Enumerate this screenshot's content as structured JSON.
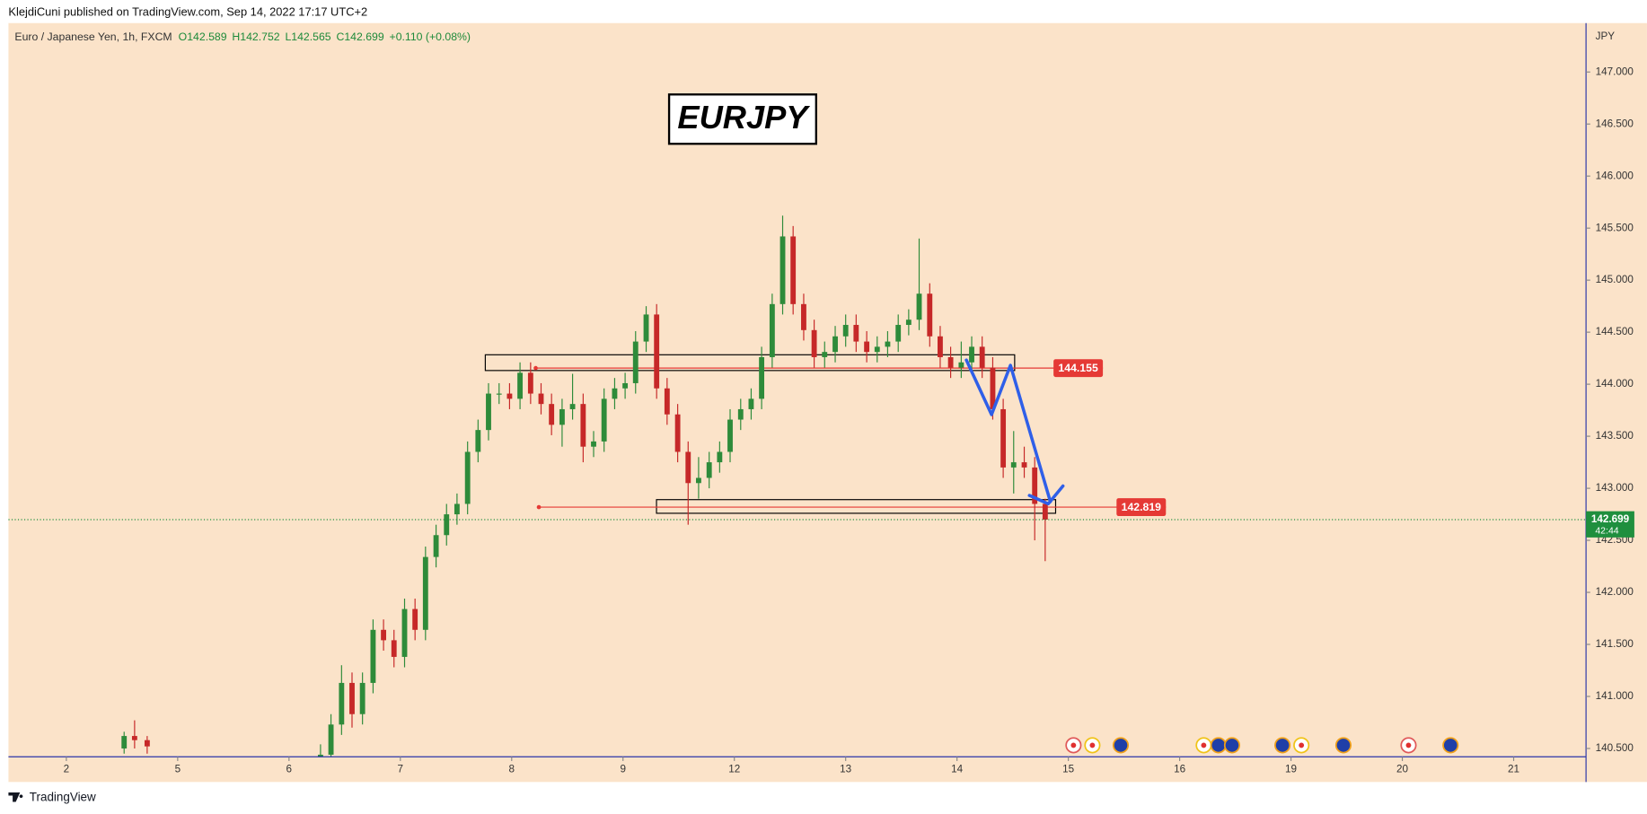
{
  "header": {
    "publisher": "KlejdiCuni published on TradingView.com, Sep 14, 2022 17:17 UTC+2",
    "symbol": "Euro / Japanese Yen, 1h, FXCM",
    "ohlc": [
      "O142.589",
      "H142.752",
      "L142.565",
      "C142.699",
      "+0.110 (+0.08%)"
    ]
  },
  "footer": {
    "brand": "TradingView"
  },
  "chart_data": {
    "type": "candlestick",
    "title": "EURJPY",
    "y_axis_label": "JPY",
    "up_color": "#2e8b3a",
    "down_color": "#c62828",
    "xlim": [
      -0.52,
      13.65
    ],
    "ylim": [
      140.42,
      147.47
    ],
    "xticks": [
      {
        "value": 0,
        "label": "2"
      },
      {
        "value": 1,
        "label": "5"
      },
      {
        "value": 2,
        "label": "6"
      },
      {
        "value": 3,
        "label": "7"
      },
      {
        "value": 4,
        "label": "8"
      },
      {
        "value": 5,
        "label": "9"
      },
      {
        "value": 6,
        "label": "12"
      },
      {
        "value": 7,
        "label": "13"
      },
      {
        "value": 8,
        "label": "14"
      },
      {
        "value": 9,
        "label": "15"
      },
      {
        "value": 10,
        "label": "16"
      },
      {
        "value": 11,
        "label": "19"
      },
      {
        "value": 12,
        "label": "20"
      },
      {
        "value": 13,
        "label": "21"
      }
    ],
    "yticks": [
      {
        "value": 140.5,
        "label": "140.500"
      },
      {
        "value": 141,
        "label": "141.000"
      },
      {
        "value": 141.5,
        "label": "141.500"
      },
      {
        "value": 142,
        "label": "142.000"
      },
      {
        "value": 142.5,
        "label": "142.500"
      },
      {
        "value": 143,
        "label": "143.000"
      },
      {
        "value": 143.5,
        "label": "143.500"
      },
      {
        "value": 144,
        "label": "144.000"
      },
      {
        "value": 144.5,
        "label": "144.500"
      },
      {
        "value": 145,
        "label": "145.000"
      },
      {
        "value": 145.5,
        "label": "145.500"
      },
      {
        "value": 146,
        "label": "146.000"
      },
      {
        "value": 146.5,
        "label": "146.500"
      },
      {
        "value": 147,
        "label": "147.000"
      }
    ],
    "x": [
      0.519,
      0.613,
      0.726,
      2.283,
      2.377,
      2.472,
      2.566,
      2.66,
      2.755,
      2.849,
      2.943,
      3.038,
      3.132,
      3.226,
      3.321,
      3.415,
      3.509,
      3.604,
      3.698,
      3.792,
      3.887,
      3.981,
      4.075,
      4.17,
      4.264,
      4.358,
      4.453,
      4.547,
      4.642,
      4.736,
      4.83,
      4.925,
      5.019,
      5.113,
      5.208,
      5.302,
      5.396,
      5.491,
      5.585,
      5.679,
      5.774,
      5.868,
      5.962,
      6.057,
      6.151,
      6.245,
      6.34,
      6.434,
      6.528,
      6.623,
      6.717,
      6.811,
      6.906,
      7.0,
      7.094,
      7.189,
      7.283,
      7.377,
      7.472,
      7.566,
      7.66,
      7.755,
      7.849,
      7.943,
      8.038,
      8.132,
      8.226,
      8.321,
      8.415,
      8.509,
      8.604,
      8.698,
      8.792
    ],
    "open": [
      140.5,
      140.62,
      140.58,
      140.4,
      140.44,
      140.73,
      141.13,
      140.83,
      141.13,
      141.64,
      141.54,
      141.38,
      141.84,
      141.64,
      142.34,
      142.55,
      142.75,
      142.85,
      143.35,
      143.56,
      143.91,
      143.91,
      143.86,
      144.11,
      143.91,
      143.81,
      143.61,
      143.76,
      143.81,
      143.4,
      143.45,
      143.86,
      143.96,
      144.01,
      144.41,
      144.67,
      143.96,
      143.71,
      143.35,
      143.05,
      143.1,
      143.25,
      143.35,
      143.66,
      143.76,
      143.86,
      144.26,
      144.77,
      145.42,
      144.77,
      144.52,
      144.26,
      144.31,
      144.46,
      144.57,
      144.41,
      144.31,
      144.36,
      144.41,
      144.57,
      144.62,
      144.87,
      144.46,
      144.26,
      144.16,
      144.21,
      144.36,
      144.16,
      143.76,
      143.2,
      143.25,
      143.2,
      142.85
    ],
    "high": [
      140.66,
      140.77,
      140.62,
      140.54,
      140.83,
      141.3,
      141.23,
      141.23,
      141.74,
      141.74,
      141.64,
      141.94,
      141.94,
      142.44,
      142.65,
      142.85,
      142.95,
      143.45,
      143.66,
      144.01,
      144.01,
      144.01,
      144.21,
      144.21,
      144.01,
      143.91,
      143.86,
      144.1,
      143.91,
      143.55,
      143.96,
      144.06,
      144.11,
      144.51,
      144.75,
      144.77,
      144.06,
      143.81,
      143.45,
      143.3,
      143.35,
      143.45,
      143.76,
      143.86,
      143.96,
      144.36,
      144.87,
      145.62,
      145.52,
      144.87,
      144.62,
      144.41,
      144.56,
      144.67,
      144.67,
      144.51,
      144.46,
      144.51,
      144.67,
      144.72,
      145.4,
      144.97,
      144.56,
      144.36,
      144.41,
      144.46,
      144.46,
      144.26,
      143.86,
      143.55,
      143.4,
      143.3,
      142.9
    ],
    "low": [
      140.45,
      140.5,
      140.45,
      140.3,
      140.34,
      140.63,
      140.7,
      140.73,
      141.03,
      141.44,
      141.28,
      141.28,
      141.54,
      141.54,
      142.24,
      142.45,
      142.65,
      142.75,
      143.25,
      143.46,
      143.81,
      143.76,
      143.76,
      143.81,
      143.71,
      143.51,
      143.4,
      143.66,
      143.25,
      143.3,
      143.35,
      143.76,
      143.86,
      143.91,
      144.31,
      143.86,
      143.61,
      143.25,
      142.65,
      142.9,
      143.0,
      143.15,
      143.25,
      143.56,
      143.66,
      143.76,
      144.16,
      144.67,
      144.67,
      144.42,
      144.16,
      144.16,
      144.21,
      144.36,
      144.31,
      144.21,
      144.21,
      144.26,
      144.31,
      144.47,
      144.52,
      144.36,
      144.16,
      144.06,
      144.06,
      144.11,
      144.06,
      143.66,
      143.1,
      142.95,
      143.1,
      142.5,
      142.3
    ],
    "close": [
      140.62,
      140.58,
      140.52,
      140.44,
      140.73,
      141.13,
      140.83,
      141.13,
      141.64,
      141.54,
      141.38,
      141.84,
      141.64,
      142.34,
      142.55,
      142.75,
      142.85,
      143.35,
      143.56,
      143.91,
      143.91,
      143.86,
      144.11,
      143.91,
      143.81,
      143.61,
      143.76,
      143.81,
      143.4,
      143.45,
      143.86,
      143.96,
      144.01,
      144.41,
      144.67,
      143.96,
      143.71,
      143.35,
      143.05,
      143.1,
      143.25,
      143.35,
      143.66,
      143.76,
      143.86,
      144.26,
      144.77,
      145.42,
      144.77,
      144.52,
      144.26,
      144.31,
      144.46,
      144.57,
      144.41,
      144.31,
      144.36,
      144.41,
      144.57,
      144.62,
      144.87,
      144.46,
      144.26,
      144.16,
      144.21,
      144.36,
      144.16,
      143.76,
      143.2,
      143.25,
      143.2,
      142.85,
      142.699
    ],
    "levels": [
      {
        "value": 144.155,
        "color": "#e53935"
      },
      {
        "value": 142.819,
        "color": "#e53935"
      }
    ],
    "last_price": {
      "value": 142.699,
      "countdown": "42:44",
      "color": "#1f8f3e"
    }
  }
}
